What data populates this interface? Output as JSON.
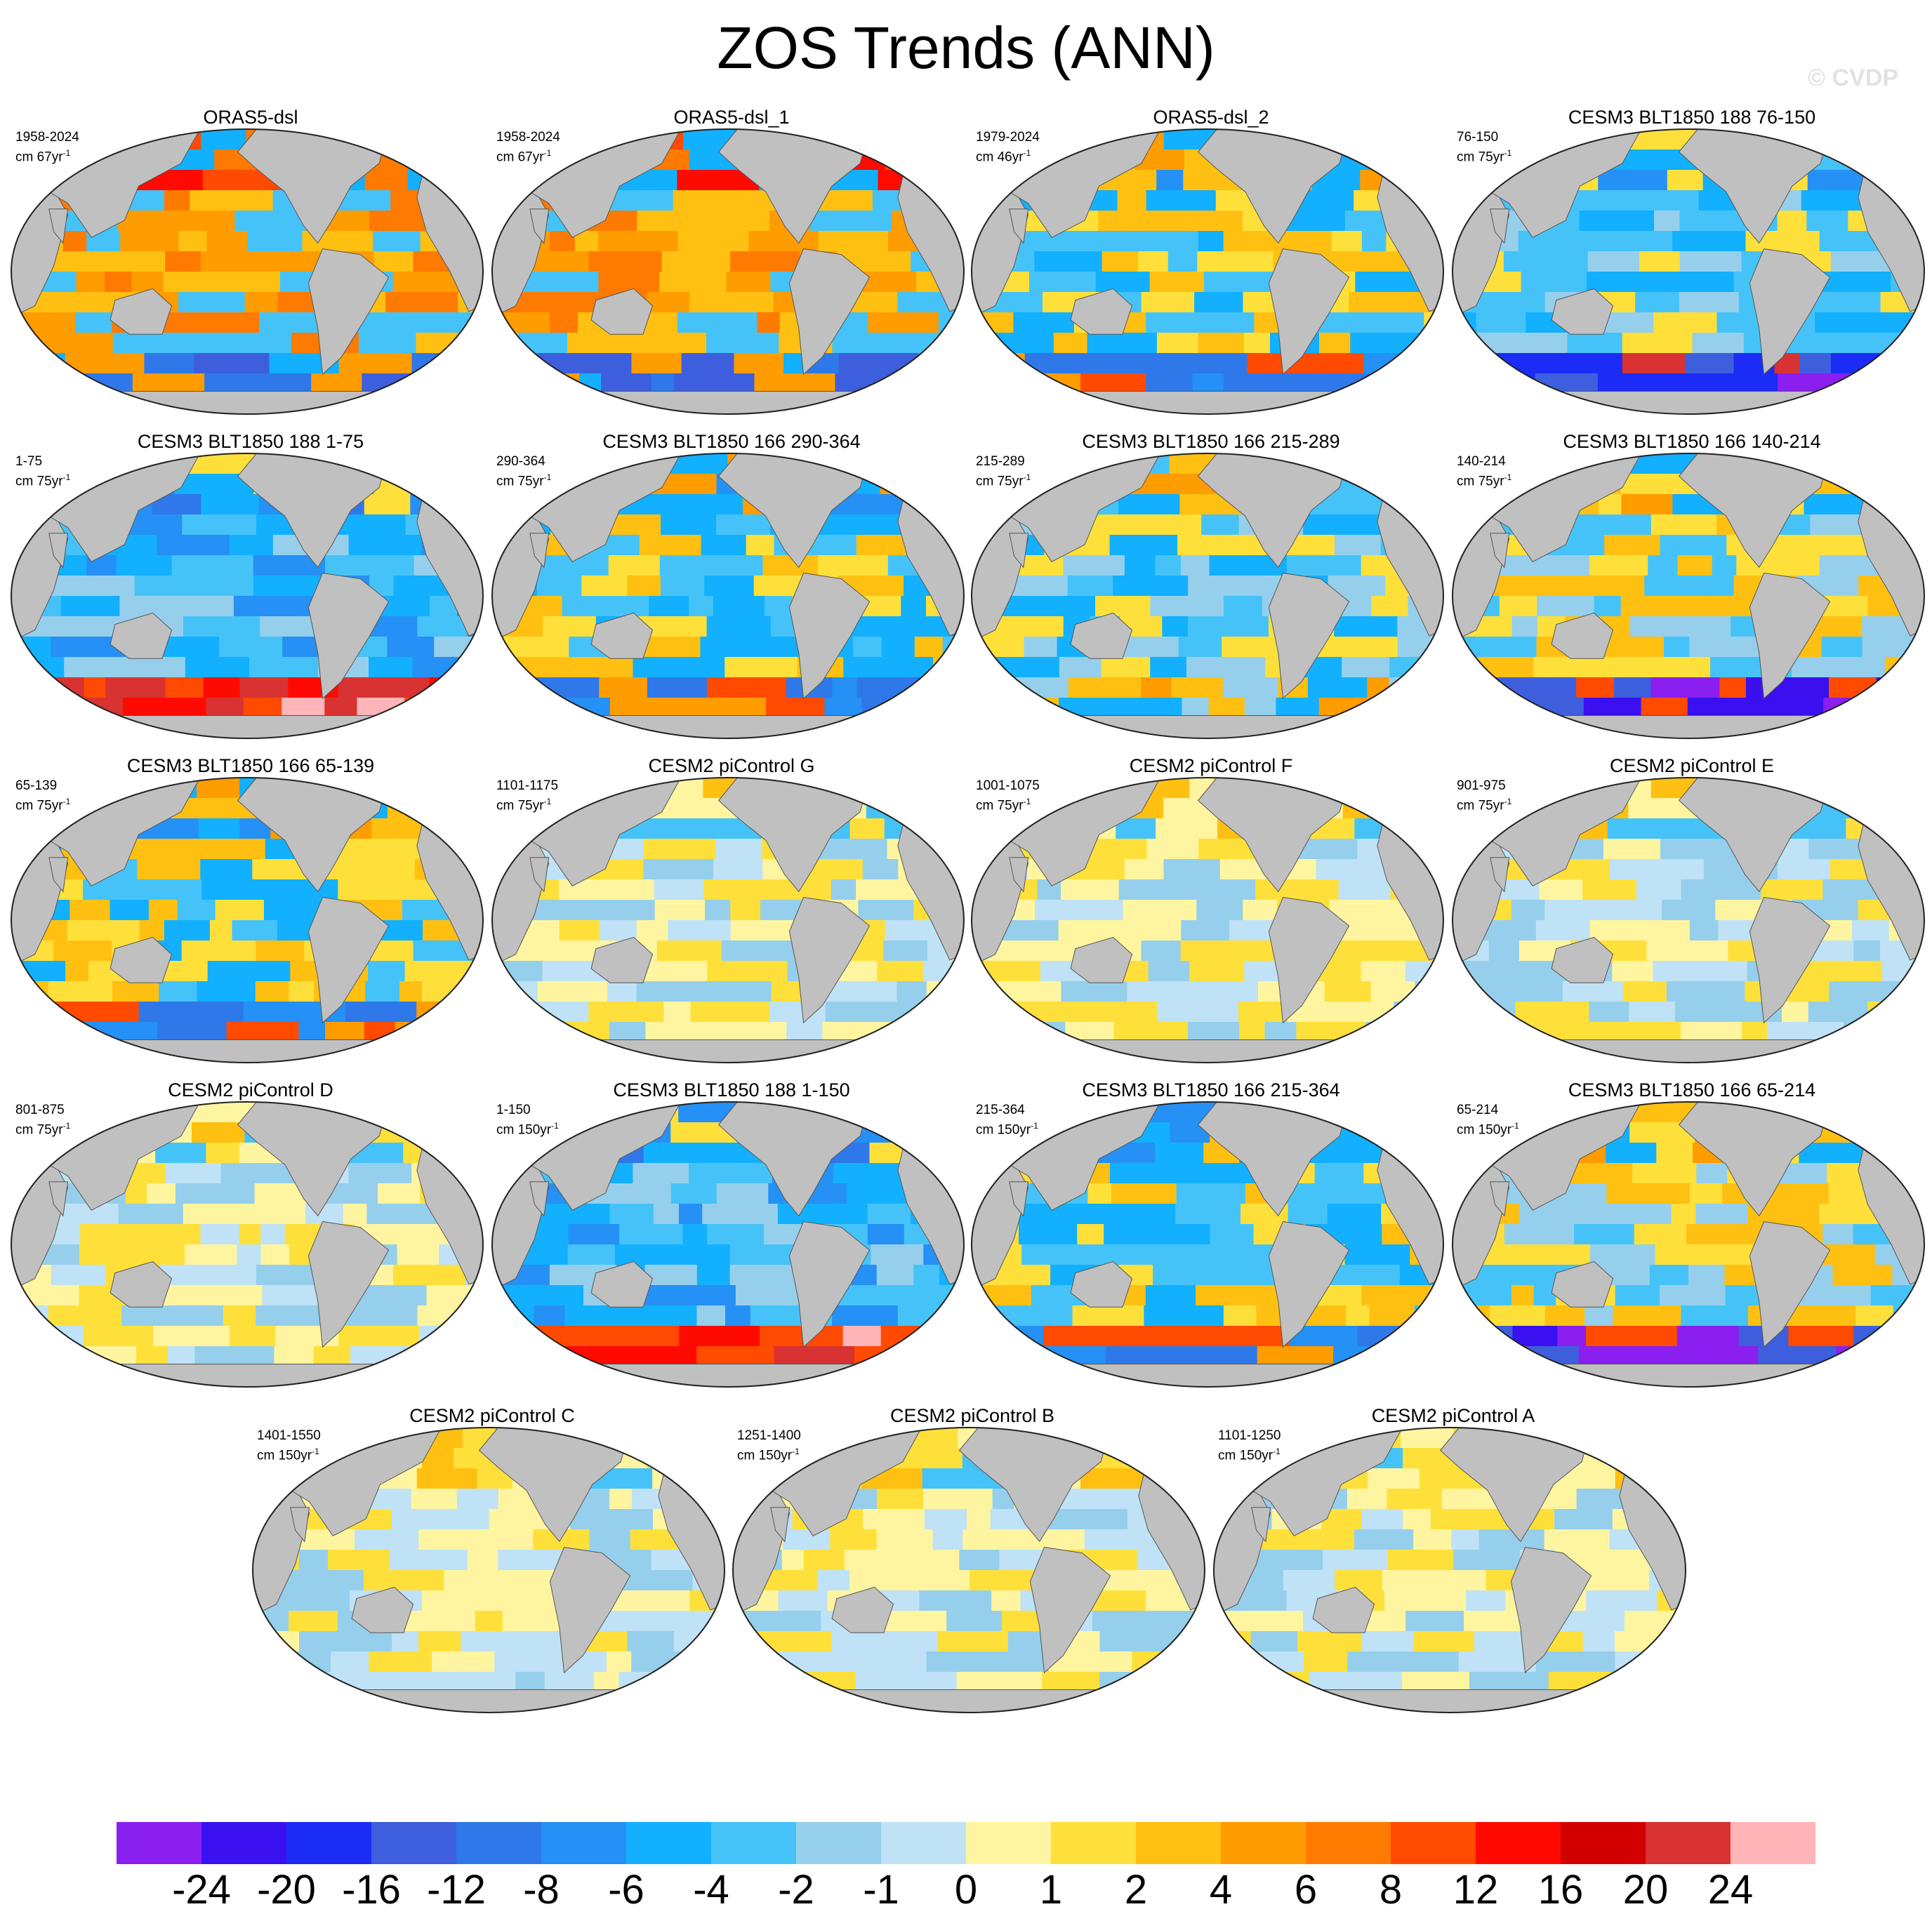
{
  "title": "ZOS Trends (ANN)",
  "watermark": "© CVDP",
  "chart_data": {
    "type": "map-panels",
    "projection": "Robinson (global, Pacific-centered)",
    "variable": "ZOS",
    "season": "ANN",
    "panels": [
      {
        "title": "ORAS5-dsl",
        "period": "1958-2024",
        "units_base": "cm 67yr",
        "units_exp": "-1",
        "pattern": "warm"
      },
      {
        "title": "ORAS5-dsl_1",
        "period": "1958-2024",
        "units_base": "cm 67yr",
        "units_exp": "-1",
        "pattern": "warm"
      },
      {
        "title": "ORAS5-dsl_2",
        "period": "1979-2024",
        "units_base": "cm 46yr",
        "units_exp": "-1",
        "pattern": "mixed"
      },
      {
        "title": "CESM3 BLT1850 188 76-150",
        "period": "76-150",
        "units_base": "cm 75yr",
        "units_exp": "-1",
        "pattern": "cool"
      },
      {
        "title": "CESM3 BLT1850 188 1-75",
        "period": "1-75",
        "units_base": "cm 75yr",
        "units_exp": "-1",
        "pattern": "cool-south-warm"
      },
      {
        "title": "CESM3 BLT1850 166 290-364",
        "period": "290-364",
        "units_base": "cm 75yr",
        "units_exp": "-1",
        "pattern": "mixed"
      },
      {
        "title": "CESM3 BLT1850 166 215-289",
        "period": "215-289",
        "units_base": "cm 75yr",
        "units_exp": "-1",
        "pattern": "mixed-cool"
      },
      {
        "title": "CESM3 BLT1850 166 140-214",
        "period": "140-214",
        "units_base": "cm 75yr",
        "units_exp": "-1",
        "pattern": "mixed-warm"
      },
      {
        "title": "CESM3 BLT1850 166 65-139",
        "period": "65-139",
        "units_base": "cm 75yr",
        "units_exp": "-1",
        "pattern": "mixed"
      },
      {
        "title": "CESM2 piControl G",
        "period": "1101-1175",
        "units_base": "cm 75yr",
        "units_exp": "-1",
        "pattern": "weak"
      },
      {
        "title": "CESM2 piControl F",
        "period": "1001-1075",
        "units_base": "cm 75yr",
        "units_exp": "-1",
        "pattern": "weak"
      },
      {
        "title": "CESM2 piControl E",
        "period": "901-975",
        "units_base": "cm 75yr",
        "units_exp": "-1",
        "pattern": "weak"
      },
      {
        "title": "CESM2 piControl D",
        "period": "801-875",
        "units_base": "cm 75yr",
        "units_exp": "-1",
        "pattern": "weak"
      },
      {
        "title": "CESM3 BLT1850 188 1-150",
        "period": "1-150",
        "units_base": "cm 150yr",
        "units_exp": "-1",
        "pattern": "cool-south-warm"
      },
      {
        "title": "CESM3 BLT1850 166 215-364",
        "period": "215-364",
        "units_base": "cm 150yr",
        "units_exp": "-1",
        "pattern": "mixed"
      },
      {
        "title": "CESM3 BLT1850 166 65-214",
        "period": "65-214",
        "units_base": "cm 150yr",
        "units_exp": "-1",
        "pattern": "mixed-warm"
      },
      {
        "title": "CESM2 piControl C",
        "period": "1401-1550",
        "units_base": "cm 150yr",
        "units_exp": "-1",
        "pattern": "weak"
      },
      {
        "title": "CESM2 piControl B",
        "period": "1251-1400",
        "units_base": "cm 150yr",
        "units_exp": "-1",
        "pattern": "weak"
      },
      {
        "title": "CESM2 piControl A",
        "period": "1101-1250",
        "units_base": "cm 150yr",
        "units_exp": "-1",
        "pattern": "weak"
      }
    ],
    "colorbar": {
      "labels": [
        "-24",
        "-20",
        "-16",
        "-12",
        "-8",
        "-6",
        "-4",
        "-2",
        "-1",
        "0",
        "1",
        "2",
        "4",
        "6",
        "8",
        "12",
        "16",
        "20",
        "24"
      ],
      "colors": [
        "#8a1ff0",
        "#3a10f0",
        "#1a2cf5",
        "#3d5fdd",
        "#2f78ea",
        "#2590f5",
        "#12b0ff",
        "#45c3f8",
        "#96cfec",
        "#bfe2f6",
        "#fff5a0",
        "#ffe03a",
        "#ffc012",
        "#ff9c00",
        "#ff7a00",
        "#ff4a00",
        "#ff0a00",
        "#d30000",
        "#d83232",
        "#ffb5b8"
      ]
    },
    "land_color": "#c0c0c0"
  }
}
